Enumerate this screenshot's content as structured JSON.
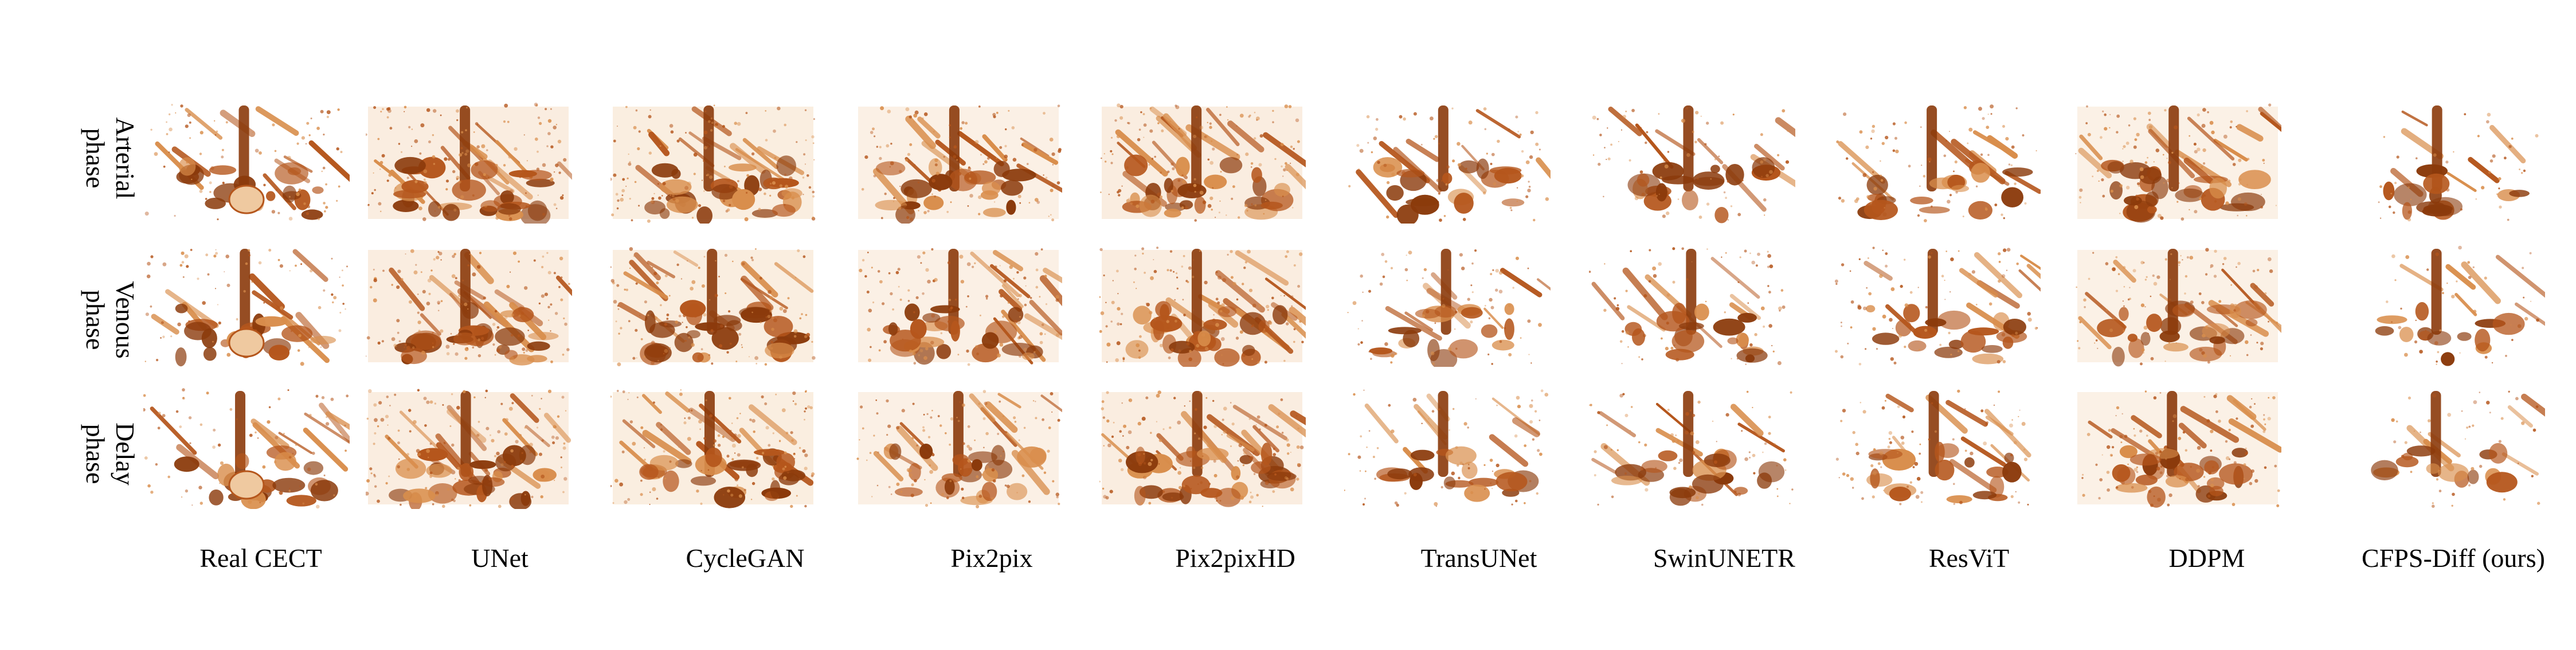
{
  "figure": {
    "row_labels": [
      {
        "line1": "Arterial",
        "line2": "phase"
      },
      {
        "line1": "Venous",
        "line2": "phase"
      },
      {
        "line1": "Delay",
        "line2": "phase"
      }
    ],
    "column_labels": [
      "Real CECT",
      "UNet",
      "CycleGAN",
      "Pix2pix",
      "Pix2pixHD",
      "TransUNet",
      "SwinUNETR",
      "ResViT",
      "DDPM",
      "CFPS-Diff (ours)"
    ],
    "colors": {
      "render_dark": "#8b3a0b",
      "render_mid": "#b5561c",
      "render_light": "#d98e4c",
      "render_pale": "#efc9a0",
      "background": "#ffffff"
    }
  }
}
